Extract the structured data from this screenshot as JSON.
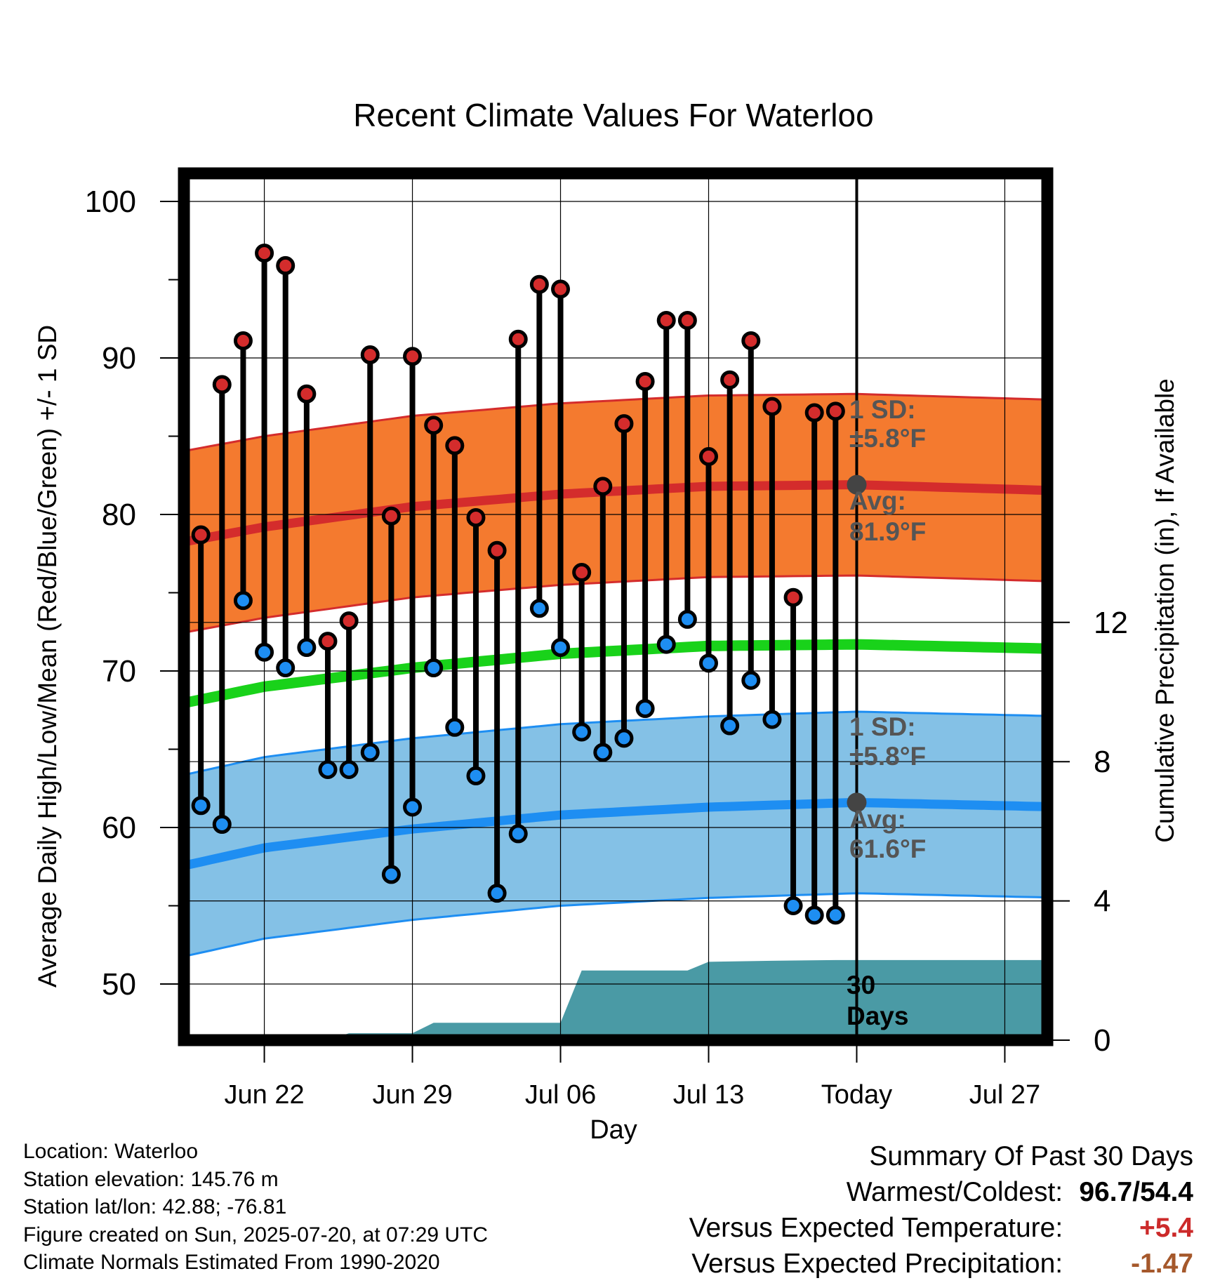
{
  "chart_data": {
    "type": "line",
    "title": "Recent Climate Values For Waterloo",
    "xlabel": "Day",
    "ylabel": "Average Daily High/Low/Mean (Red/Blue/Green) +/- 1 SD",
    "y2label": "Cumulative Precipitation (in), If Available",
    "ylim": [
      46.5,
      102
    ],
    "y2lim": [
      0,
      24
    ],
    "y_ticks": [
      50,
      60,
      70,
      80,
      90,
      100
    ],
    "y2_ticks": [
      0,
      4,
      8,
      12
    ],
    "x_range": [
      "2025-06-18",
      "2025-07-30"
    ],
    "x_ticks": [
      {
        "date": "2025-06-22",
        "label": "Jun 22"
      },
      {
        "date": "2025-06-29",
        "label": "Jun 29"
      },
      {
        "date": "2025-07-06",
        "label": "Jul 06"
      },
      {
        "date": "2025-07-13",
        "label": "Jul 13"
      },
      {
        "date": "2025-07-20",
        "label": "Today"
      },
      {
        "date": "2025-07-27",
        "label": "Jul 27"
      }
    ],
    "grid": true,
    "today": "2025-07-20",
    "observed": {
      "dates": [
        "2025-06-19",
        "2025-06-20",
        "2025-06-21",
        "2025-06-22",
        "2025-06-23",
        "2025-06-24",
        "2025-06-25",
        "2025-06-26",
        "2025-06-27",
        "2025-06-28",
        "2025-06-29",
        "2025-06-30",
        "2025-07-01",
        "2025-07-02",
        "2025-07-03",
        "2025-07-04",
        "2025-07-05",
        "2025-07-06",
        "2025-07-07",
        "2025-07-08",
        "2025-07-09",
        "2025-07-10",
        "2025-07-11",
        "2025-07-12",
        "2025-07-13",
        "2025-07-14",
        "2025-07-15",
        "2025-07-16",
        "2025-07-17",
        "2025-07-18",
        "2025-07-19"
      ],
      "highs": [
        78.7,
        88.3,
        91.1,
        96.7,
        95.9,
        87.7,
        71.9,
        73.2,
        90.2,
        79.9,
        90.1,
        85.7,
        84.4,
        79.8,
        77.7,
        91.2,
        94.7,
        94.4,
        76.3,
        81.8,
        85.8,
        88.5,
        92.4,
        92.4,
        83.7,
        88.6,
        91.1,
        86.9,
        74.7,
        86.5,
        86.6
      ],
      "lows": [
        61.4,
        60.2,
        74.5,
        71.2,
        70.2,
        71.5,
        63.7,
        63.7,
        64.8,
        57.0,
        61.3,
        70.2,
        66.4,
        63.3,
        55.8,
        59.6,
        74.0,
        71.5,
        66.1,
        64.8,
        65.7,
        67.6,
        71.7,
        73.3,
        70.5,
        66.5,
        69.4,
        66.9,
        55.0,
        54.4,
        54.4
      ]
    },
    "normals": {
      "dates": [
        "2025-06-18",
        "2025-06-22",
        "2025-06-29",
        "2025-07-06",
        "2025-07-13",
        "2025-07-20",
        "2025-07-30"
      ],
      "avg_high": [
        78.2,
        79.2,
        80.5,
        81.3,
        81.8,
        81.9,
        81.5
      ],
      "avg_low": [
        57.5,
        58.7,
        59.9,
        60.8,
        61.3,
        61.6,
        61.3
      ],
      "avg_mean": [
        67.9,
        69.0,
        70.2,
        71.1,
        71.6,
        71.7,
        71.4
      ],
      "sd": 5.8
    },
    "precipitation": {
      "dates": [
        "2025-06-18",
        "2025-06-25",
        "2025-06-26",
        "2025-06-29",
        "2025-06-30",
        "2025-07-06",
        "2025-07-07",
        "2025-07-12",
        "2025-07-13",
        "2025-07-16",
        "2025-07-19",
        "2025-07-30"
      ],
      "cumulative": [
        0,
        0,
        0.2,
        0.2,
        0.5,
        0.5,
        2.0,
        2.0,
        2.25,
        2.28,
        2.3,
        2.3
      ]
    },
    "annotations": {
      "high_sd_label": "1 SD:",
      "high_sd_value": "±5.8°F",
      "high_avg_label": "Avg:",
      "high_avg_value": "81.9°F",
      "low_sd_label": "1 SD:",
      "low_sd_value": "±5.8°F",
      "low_avg_label": "Avg:",
      "low_avg_value": "61.6°F",
      "days_label_1": "30",
      "days_label_2": "Days"
    },
    "colors": {
      "high_band": "#f47a2f",
      "high_line": "#d42c2c",
      "low_band": "#84c1e6",
      "low_line": "#1e8ef2",
      "mean_line": "#19d21a",
      "precip": "#4a9aa5",
      "high_dot": "#d42c2c",
      "low_dot": "#1e8ef2",
      "avg_dot": "#444444",
      "annotation": "#555555"
    }
  },
  "info": {
    "location": "Location: Waterloo",
    "elevation": "Station elevation: 145.76 m",
    "latlon": "Station lat/lon: 42.88; -76.81",
    "created": "Figure created on Sun, 2025-07-20, at 07:29 UTC",
    "normals": "Climate Normals Estimated From 1990-2020"
  },
  "summary": {
    "title": "Summary Of Past 30 Days",
    "warmest_label": "Warmest/Coldest:",
    "warmest_value": "96.7/54.4",
    "temp_label": "Versus Expected Temperature:",
    "temp_value": "+5.4",
    "precip_label": "Versus Expected Precipitation:",
    "precip_value": "-1.47"
  }
}
